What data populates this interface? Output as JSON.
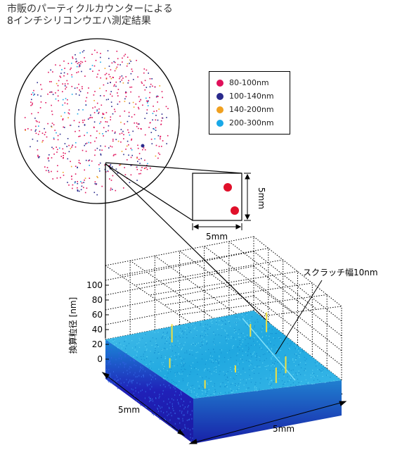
{
  "title_line1": "市販のパーティクルカウンターによる",
  "title_line2": "8インチシリコンウエハ測定結果",
  "legend": [
    {
      "label": "80-100nm",
      "color": "#e0105a"
    },
    {
      "label": "100-140nm",
      "color": "#2a2a8c"
    },
    {
      "label": "140-200nm",
      "color": "#f0a020"
    },
    {
      "label": "200-300nm",
      "color": "#18a8e8"
    }
  ],
  "inset": {
    "width_label": "5mm",
    "height_label": "5mm",
    "particle_color": "#e0102a"
  },
  "plot3d": {
    "z_axis_label": "換算粒径 [nm]",
    "z_ticks": [
      "0",
      "20",
      "40",
      "60",
      "80",
      "100"
    ],
    "x_label": "5mm",
    "y_label": "5mm",
    "annotation": "スクラッチ幅10nm",
    "surface_colors": {
      "top": "#2ab0e0",
      "front": "#2020b0",
      "side": "#1a2ab8",
      "spike": "#f0e040"
    }
  }
}
